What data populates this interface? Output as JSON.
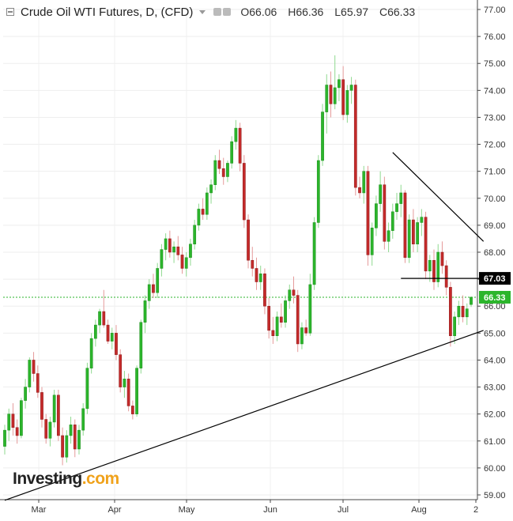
{
  "header": {
    "title": "Crude Oil WTI Futures, D, (CFD)",
    "ohlc": [
      {
        "label": "O",
        "value": "66.06"
      },
      {
        "label": "H",
        "value": "66.36"
      },
      {
        "label": "L",
        "value": "65.97"
      },
      {
        "label": "C",
        "value": "66.33"
      }
    ]
  },
  "logo": {
    "text": "Investing",
    "suffix": ".com"
  },
  "chart_data": {
    "type": "candlestick",
    "title": "Crude Oil WTI Futures, D, (CFD)",
    "y_axis": {
      "ylim": [
        59,
        77
      ],
      "ticks": [
        "59.00",
        "60.00",
        "61.00",
        "62.00",
        "63.00",
        "64.00",
        "65.00",
        "66.00",
        "67.00",
        "68.00",
        "69.00",
        "70.00",
        "71.00",
        "72.00",
        "73.00",
        "74.00",
        "75.00",
        "76.00",
        "77.00"
      ],
      "position": "right"
    },
    "x_axis": {
      "ticks": [
        "Mar",
        "Apr",
        "May",
        "Jun",
        "Jul",
        "Aug",
        "2"
      ]
    },
    "price_labels": [
      {
        "value": 67.03,
        "text": "67.03",
        "color": "#000000"
      },
      {
        "value": 66.33,
        "text": "66.33",
        "color": "#2bb52b"
      }
    ],
    "candles": [
      [
        60.8,
        61.6,
        60.5,
        61.4
      ],
      [
        61.4,
        62.2,
        61.0,
        62.0
      ],
      [
        62.0,
        62.4,
        61.2,
        61.5
      ],
      [
        61.5,
        61.8,
        60.9,
        61.2
      ],
      [
        61.2,
        62.6,
        61.1,
        62.5
      ],
      [
        62.5,
        63.3,
        62.2,
        63.0
      ],
      [
        63.0,
        64.1,
        62.8,
        64.0
      ],
      [
        64.0,
        64.3,
        63.2,
        63.5
      ],
      [
        63.5,
        63.8,
        62.6,
        62.8
      ],
      [
        62.8,
        63.0,
        61.5,
        61.8
      ],
      [
        61.8,
        62.0,
        60.9,
        61.1
      ],
      [
        61.1,
        61.9,
        60.8,
        61.7
      ],
      [
        61.7,
        62.9,
        61.5,
        62.7
      ],
      [
        62.7,
        62.9,
        61.0,
        61.2
      ],
      [
        61.2,
        61.5,
        60.1,
        60.4
      ],
      [
        60.4,
        61.4,
        60.2,
        61.2
      ],
      [
        61.2,
        61.9,
        60.9,
        61.6
      ],
      [
        61.6,
        61.8,
        60.4,
        60.7
      ],
      [
        60.7,
        61.6,
        60.5,
        61.4
      ],
      [
        61.4,
        62.4,
        61.2,
        62.2
      ],
      [
        62.2,
        63.9,
        62.0,
        63.7
      ],
      [
        63.7,
        65.0,
        63.5,
        64.8
      ],
      [
        64.8,
        65.5,
        64.5,
        65.3
      ],
      [
        65.3,
        65.9,
        65.0,
        65.8
      ],
      [
        65.8,
        66.6,
        65.2,
        65.3
      ],
      [
        65.3,
        65.5,
        64.6,
        64.7
      ],
      [
        64.7,
        65.2,
        64.4,
        65.0
      ],
      [
        65.0,
        65.3,
        64.0,
        64.2
      ],
      [
        64.2,
        64.4,
        62.8,
        63.0
      ],
      [
        63.0,
        63.6,
        62.6,
        63.3
      ],
      [
        63.3,
        63.5,
        62.1,
        62.3
      ],
      [
        62.3,
        62.5,
        61.8,
        62.0
      ],
      [
        62.0,
        63.8,
        61.9,
        63.7
      ],
      [
        63.7,
        65.5,
        63.5,
        65.4
      ],
      [
        65.4,
        66.4,
        65.0,
        66.2
      ],
      [
        66.2,
        67.0,
        65.9,
        66.8
      ],
      [
        66.8,
        67.2,
        66.3,
        66.5
      ],
      [
        66.5,
        67.6,
        66.3,
        67.4
      ],
      [
        67.4,
        68.3,
        67.1,
        68.1
      ],
      [
        68.1,
        68.7,
        67.7,
        68.5
      ],
      [
        68.5,
        68.8,
        67.8,
        68.0
      ],
      [
        68.0,
        68.4,
        67.6,
        68.2
      ],
      [
        68.2,
        68.6,
        67.7,
        67.9
      ],
      [
        67.9,
        68.2,
        67.2,
        67.4
      ],
      [
        67.4,
        68.0,
        67.1,
        67.8
      ],
      [
        67.8,
        68.5,
        67.5,
        68.3
      ],
      [
        68.3,
        69.2,
        68.1,
        69.0
      ],
      [
        69.0,
        69.8,
        68.8,
        69.6
      ],
      [
        69.6,
        70.0,
        69.2,
        69.4
      ],
      [
        69.4,
        70.4,
        69.2,
        70.2
      ],
      [
        70.2,
        70.7,
        69.8,
        70.5
      ],
      [
        70.5,
        71.6,
        70.3,
        71.4
      ],
      [
        71.4,
        71.8,
        70.9,
        71.1
      ],
      [
        71.1,
        71.5,
        70.5,
        70.8
      ],
      [
        70.8,
        71.4,
        70.6,
        71.3
      ],
      [
        71.3,
        72.3,
        71.1,
        72.1
      ],
      [
        72.1,
        72.9,
        71.8,
        72.6
      ],
      [
        72.6,
        72.8,
        71.0,
        71.3
      ],
      [
        71.3,
        71.6,
        68.9,
        69.2
      ],
      [
        69.2,
        69.4,
        67.4,
        67.7
      ],
      [
        67.7,
        68.2,
        67.1,
        67.4
      ],
      [
        67.4,
        67.8,
        66.6,
        66.9
      ],
      [
        66.9,
        67.5,
        66.6,
        67.2
      ],
      [
        67.2,
        67.4,
        65.7,
        66.0
      ],
      [
        66.0,
        66.3,
        64.8,
        65.1
      ],
      [
        65.1,
        65.6,
        64.6,
        64.9
      ],
      [
        64.9,
        65.8,
        64.7,
        65.6
      ],
      [
        65.6,
        66.1,
        65.2,
        65.4
      ],
      [
        65.4,
        66.4,
        65.2,
        66.2
      ],
      [
        66.2,
        66.8,
        65.9,
        66.6
      ],
      [
        66.6,
        67.1,
        66.1,
        66.4
      ],
      [
        66.4,
        66.6,
        64.3,
        64.6
      ],
      [
        64.6,
        65.4,
        64.4,
        65.2
      ],
      [
        65.2,
        65.5,
        64.9,
        65.0
      ],
      [
        65.0,
        67.2,
        64.9,
        66.8
      ],
      [
        66.8,
        69.3,
        66.6,
        69.1
      ],
      [
        69.1,
        71.6,
        68.9,
        71.4
      ],
      [
        71.4,
        73.5,
        71.2,
        73.2
      ],
      [
        73.2,
        74.6,
        72.4,
        74.2
      ],
      [
        74.2,
        74.7,
        73.0,
        73.5
      ],
      [
        73.5,
        75.3,
        73.3,
        74.1
      ],
      [
        74.1,
        74.6,
        73.6,
        74.4
      ],
      [
        74.4,
        74.9,
        72.9,
        73.1
      ],
      [
        73.1,
        74.2,
        72.8,
        74.0
      ],
      [
        74.0,
        74.5,
        73.5,
        74.2
      ],
      [
        74.2,
        74.4,
        70.1,
        70.4
      ],
      [
        70.4,
        70.8,
        70.0,
        70.2
      ],
      [
        70.2,
        71.2,
        69.8,
        71.0
      ],
      [
        71.0,
        71.2,
        67.5,
        67.9
      ],
      [
        67.9,
        69.1,
        67.5,
        68.9
      ],
      [
        68.9,
        70.1,
        68.6,
        69.8
      ],
      [
        69.8,
        71.0,
        69.5,
        70.5
      ],
      [
        70.5,
        70.8,
        68.1,
        68.4
      ],
      [
        68.4,
        69.1,
        68.0,
        68.8
      ],
      [
        68.8,
        69.8,
        68.5,
        69.5
      ],
      [
        69.5,
        70.2,
        69.2,
        69.8
      ],
      [
        69.8,
        70.5,
        69.3,
        70.2
      ],
      [
        70.2,
        70.3,
        67.6,
        67.8
      ],
      [
        67.8,
        69.4,
        67.6,
        69.2
      ],
      [
        69.2,
        69.6,
        68.0,
        68.3
      ],
      [
        68.3,
        69.3,
        68.0,
        69.1
      ],
      [
        69.1,
        69.6,
        68.6,
        69.3
      ],
      [
        69.3,
        69.5,
        67.0,
        67.3
      ],
      [
        67.3,
        67.9,
        66.9,
        67.7
      ],
      [
        67.7,
        68.1,
        66.6,
        66.9
      ],
      [
        66.9,
        68.3,
        66.7,
        68.0
      ],
      [
        68.0,
        68.4,
        67.2,
        67.5
      ],
      [
        67.5,
        67.7,
        66.4,
        66.7
      ],
      [
        66.7,
        66.9,
        64.5,
        64.9
      ],
      [
        64.9,
        65.8,
        64.6,
        65.6
      ],
      [
        65.6,
        66.2,
        65.3,
        66.0
      ],
      [
        66.0,
        66.4,
        65.4,
        65.6
      ],
      [
        65.6,
        66.1,
        65.3,
        65.9
      ],
      [
        66.06,
        66.36,
        65.97,
        66.33
      ]
    ],
    "trendlines": [
      {
        "name": "rising-support",
        "points": [
          [
            0,
            58.8
          ],
          [
            116,
            65.1
          ]
        ]
      },
      {
        "name": "falling-resistance",
        "points": [
          [
            94,
            71.7
          ],
          [
            116,
            68.4
          ]
        ]
      },
      {
        "name": "horizontal-support",
        "points": [
          [
            96,
            67.03
          ],
          [
            116,
            67.03
          ]
        ]
      }
    ],
    "grid": true,
    "current_price_line": 66.33
  }
}
